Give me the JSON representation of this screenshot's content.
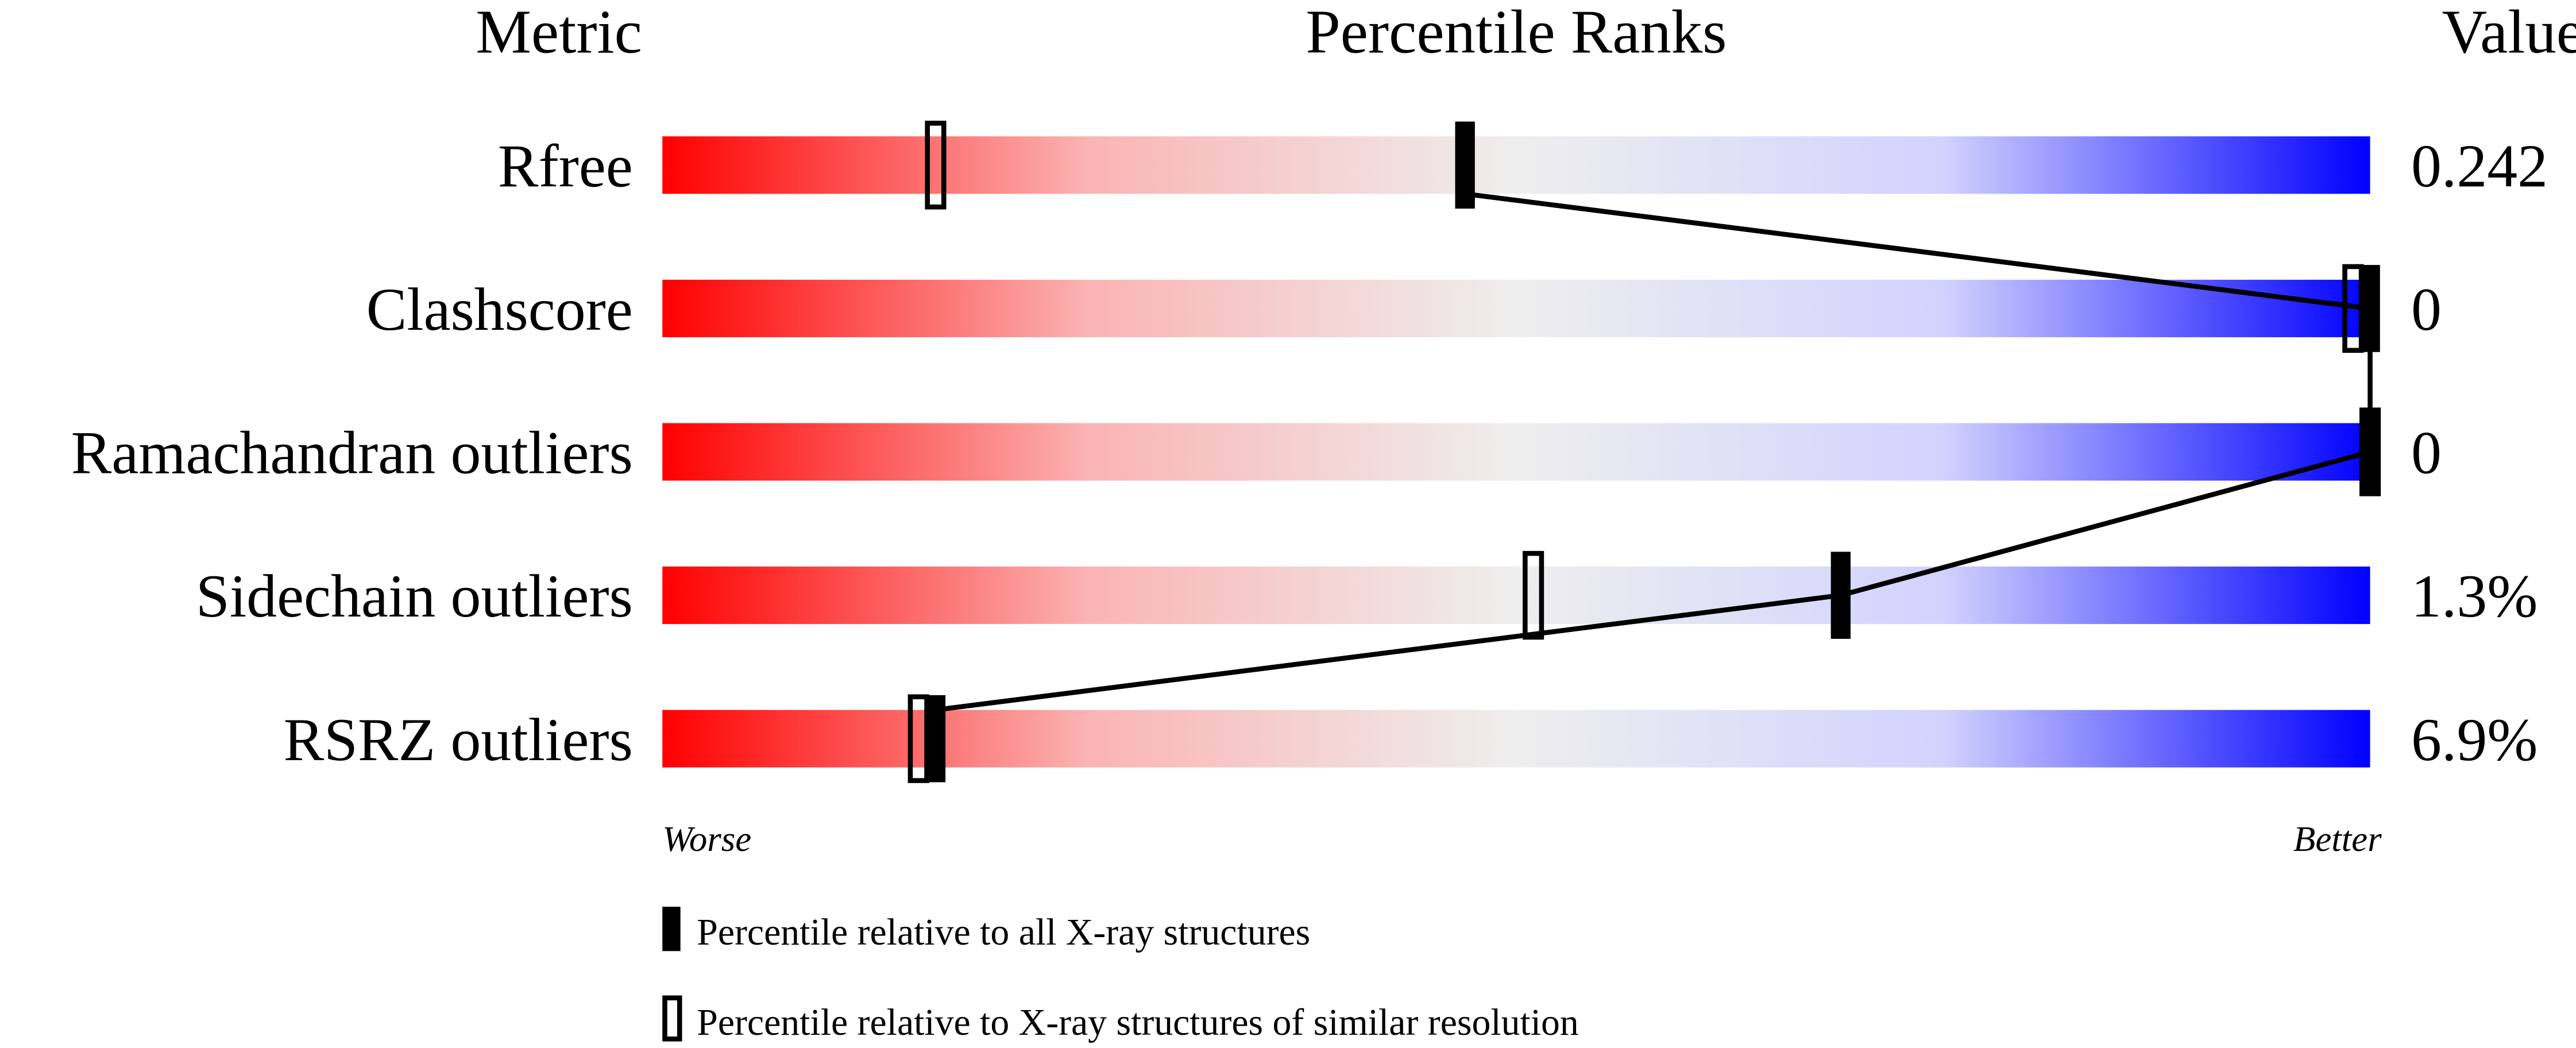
{
  "chart_data": {
    "type": "percentile-bar",
    "headers": {
      "metric": "Metric",
      "ranks": "Percentile Ranks",
      "value": "Value"
    },
    "xlim": [
      0,
      100
    ],
    "metrics": [
      {
        "name": "Rfree",
        "value": "0.242",
        "percentile_all": 47,
        "percentile_similar": 16
      },
      {
        "name": "Clashscore",
        "value": "0",
        "percentile_all": 100,
        "percentile_similar": 99
      },
      {
        "name": "Ramachandran outliers",
        "value": "0",
        "percentile_all": 100,
        "percentile_similar": 100
      },
      {
        "name": "Sidechain outliers",
        "value": "1.3%",
        "percentile_all": 69,
        "percentile_similar": 51
      },
      {
        "name": "RSRZ outliers",
        "value": "6.9%",
        "percentile_all": 16,
        "percentile_similar": 15
      }
    ],
    "axis_labels": {
      "left": "Worse",
      "right": "Better"
    },
    "legend": [
      {
        "marker": "filled",
        "label": "Percentile relative to all X-ray structures"
      },
      {
        "marker": "open",
        "label": "Percentile relative to X-ray structures of similar resolution"
      }
    ],
    "colors": {
      "worse": "#ff0000",
      "middle": "#eeeeee",
      "better_light": "#d0d0ff",
      "better": "#0000ff"
    }
  }
}
